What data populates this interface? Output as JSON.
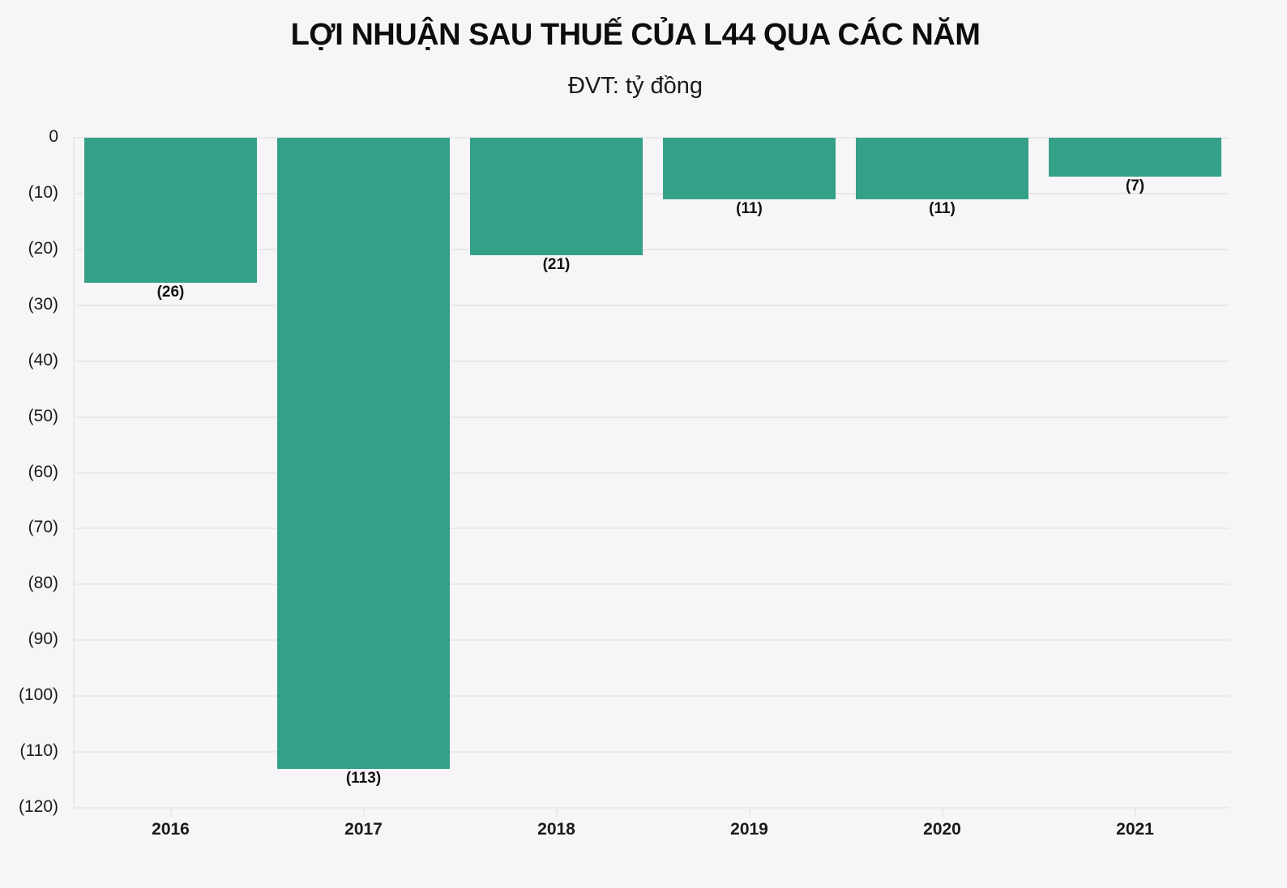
{
  "header": {
    "title": "LỢI NHUẬN SAU THUẾ CỦA L44 QUA CÁC NĂM",
    "subtitle": "ĐVT: tỷ đồng"
  },
  "colors": {
    "bar": "#34a088",
    "background": "#f7f5f8",
    "grid": "#ebe8ec"
  },
  "chart_data": {
    "type": "bar",
    "title": "LỢI NHUẬN SAU THUẾ CỦA L44 QUA CÁC NĂM",
    "subtitle": "ĐVT: tỷ đồng",
    "xlabel": "",
    "ylabel": "",
    "categories": [
      "2016",
      "2017",
      "2018",
      "2019",
      "2020",
      "2021"
    ],
    "values": [
      -26,
      -113,
      -21,
      -11,
      -11,
      -7
    ],
    "data_labels": [
      "(26)",
      "(113)",
      "(21)",
      "(11)",
      "(11)",
      "(7)"
    ],
    "ylim": [
      -120,
      0
    ],
    "yticks": [
      0,
      -10,
      -20,
      -30,
      -40,
      -50,
      -60,
      -70,
      -80,
      -90,
      -100,
      -110,
      -120
    ],
    "ytick_labels": [
      "0",
      "(10)",
      "(20)",
      "(30)",
      "(40)",
      "(50)",
      "(60)",
      "(70)",
      "(80)",
      "(90)",
      "(100)",
      "(110)",
      "(120)"
    ],
    "grid": true,
    "legend": null
  }
}
